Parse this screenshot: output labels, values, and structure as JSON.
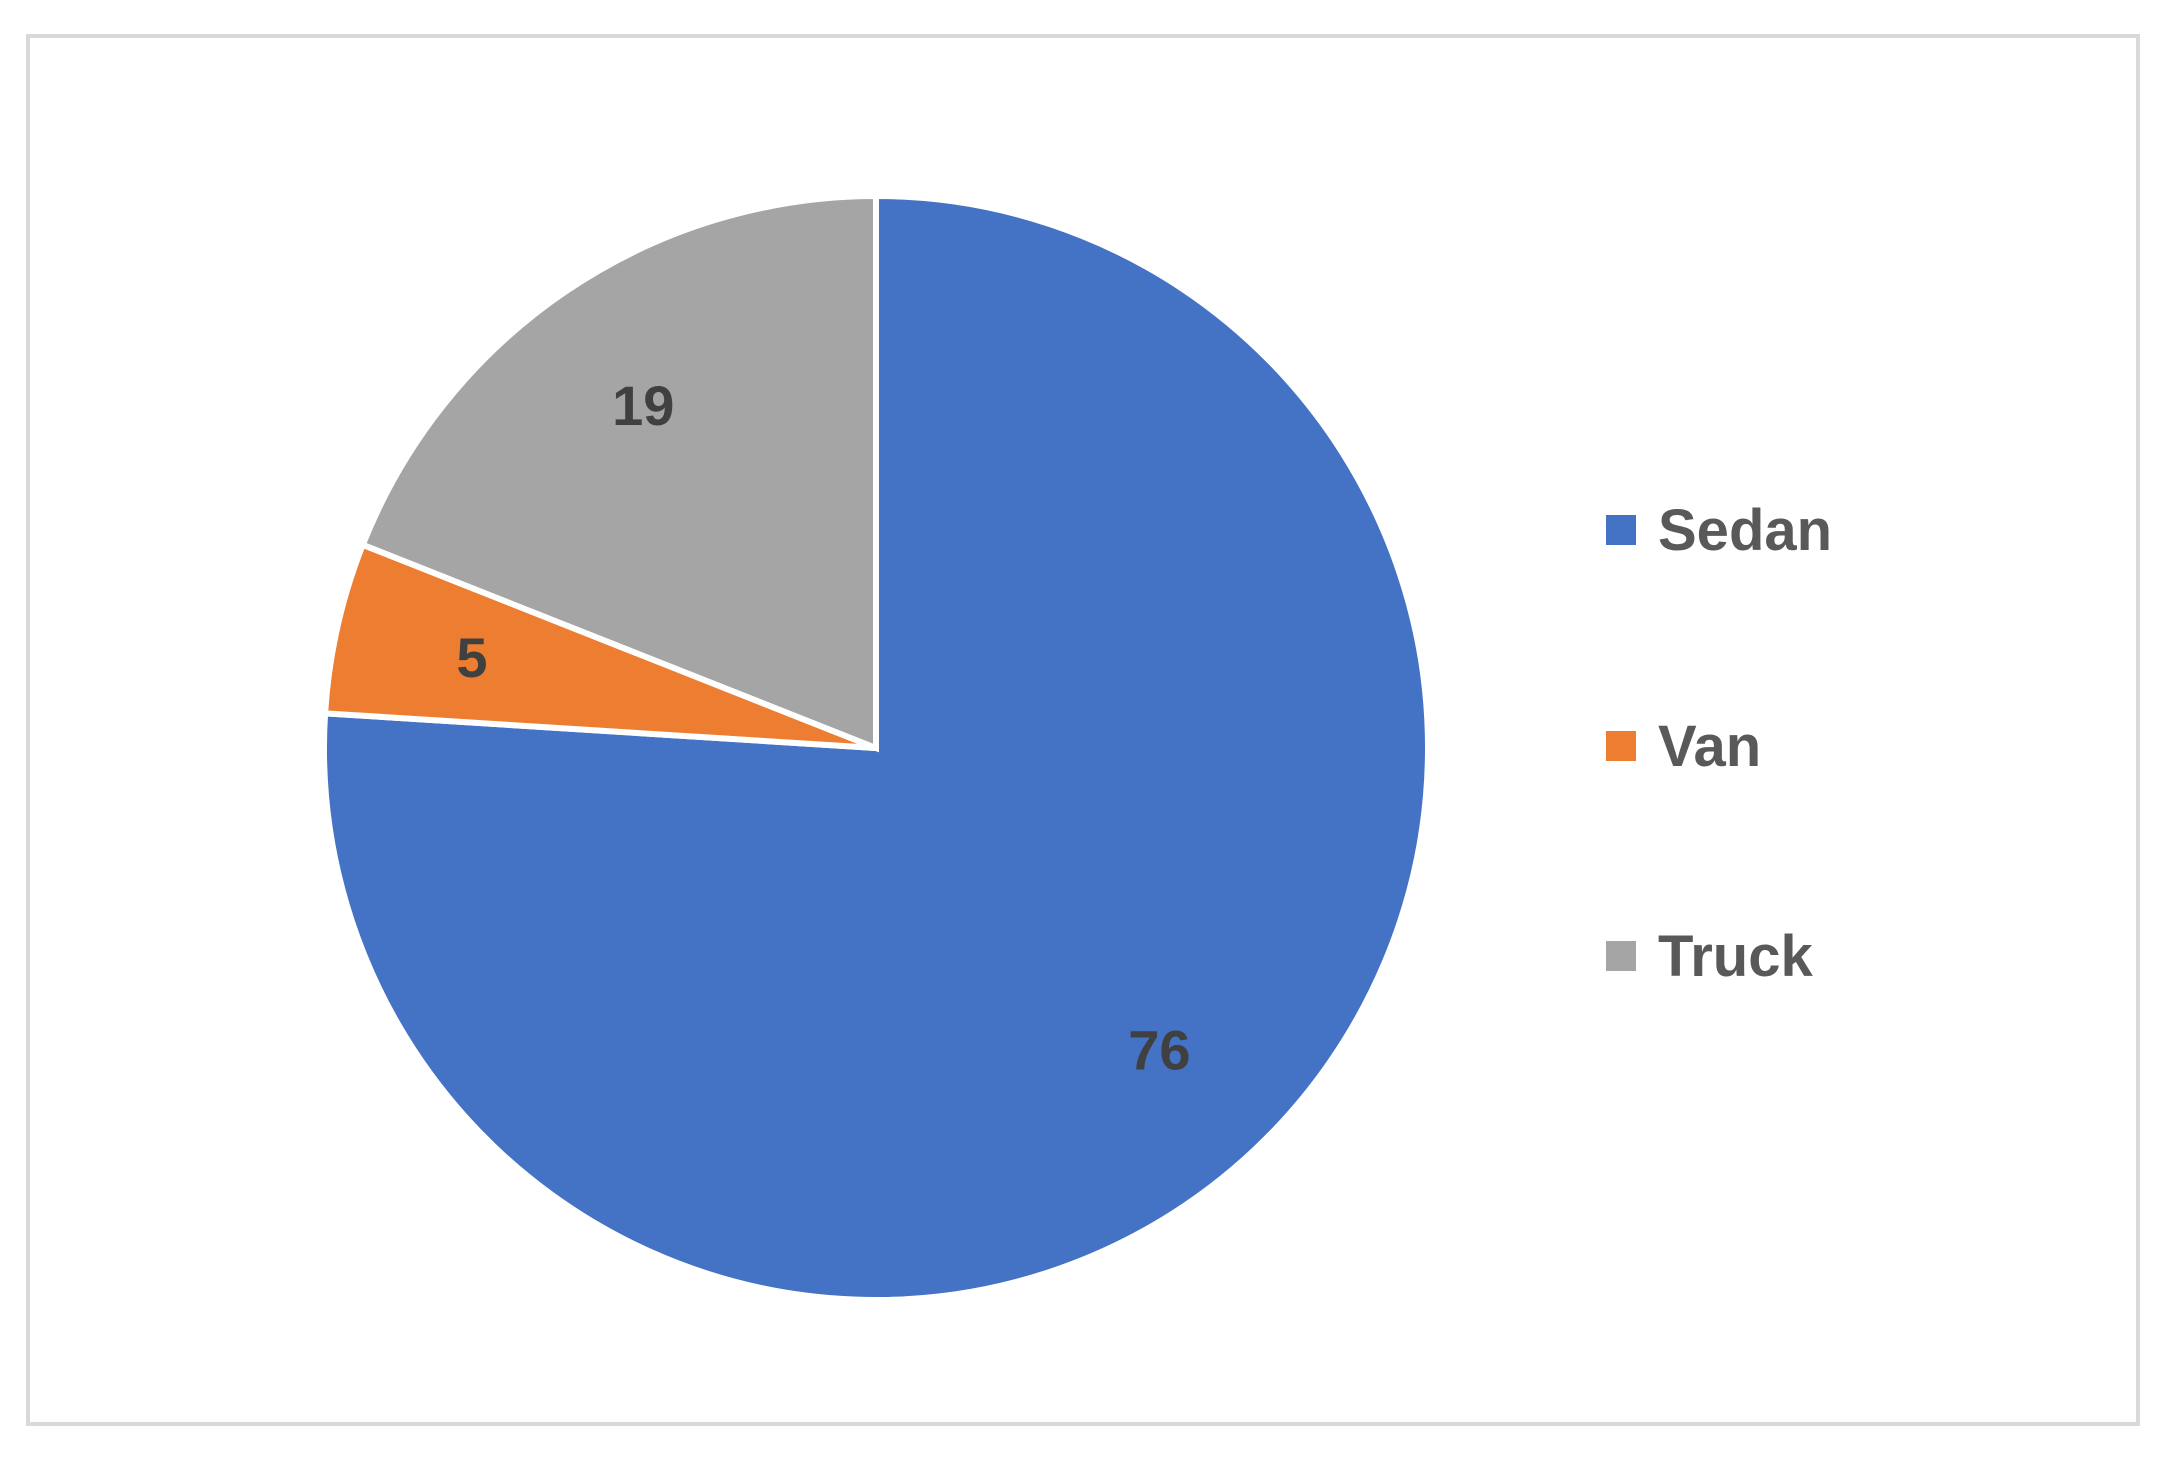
{
  "chart_data": {
    "type": "pie",
    "categories": [
      "Sedan",
      "Van",
      "Truck"
    ],
    "values": [
      76,
      5,
      19
    ],
    "colors": [
      "#4472C4",
      "#ED7D31",
      "#A5A5A5"
    ],
    "data_labels": [
      "76",
      "5",
      "19"
    ],
    "start_angle_deg": 0,
    "direction": "clockwise",
    "legend_position": "right"
  },
  "legend": {
    "items": [
      {
        "label": "Sedan",
        "color": "#4472C4"
      },
      {
        "label": "Van",
        "color": "#ED7D31"
      },
      {
        "label": "Truck",
        "color": "#A5A5A5"
      }
    ]
  }
}
